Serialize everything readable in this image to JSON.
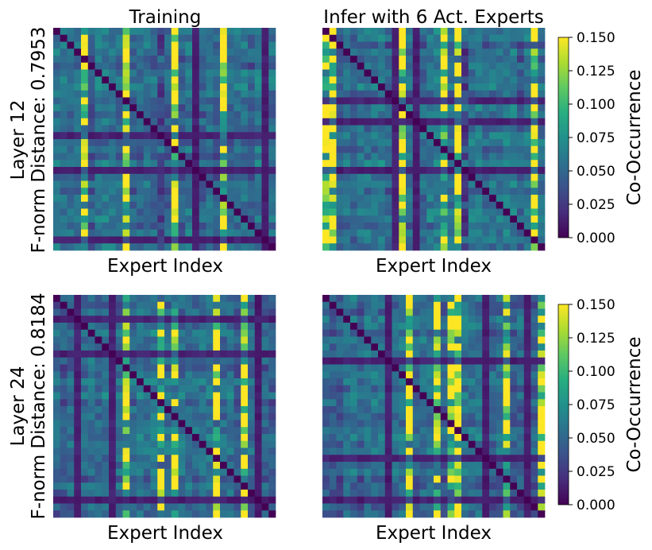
{
  "chart_data": {
    "type": "heatmap",
    "colormap": "viridis",
    "grid_size": 32,
    "columns": [
      {
        "title": "Training"
      },
      {
        "title": "Infer with 6 Act. Experts"
      }
    ],
    "rows": [
      {
        "layer_label": "Layer 12",
        "distance_label": "F-norm Distance: 0.7953",
        "seed": 12
      },
      {
        "layer_label": "Layer 24",
        "distance_label": "F-norm Distance: 0.8184",
        "seed": 24
      }
    ],
    "xlabel": "Expert Index",
    "colorbar": {
      "label": "Co-Occurrence",
      "vmin": 0.0,
      "vmax": 0.15,
      "ticks": [
        "0.000",
        "0.025",
        "0.050",
        "0.075",
        "0.100",
        "0.125",
        "0.150"
      ]
    }
  }
}
